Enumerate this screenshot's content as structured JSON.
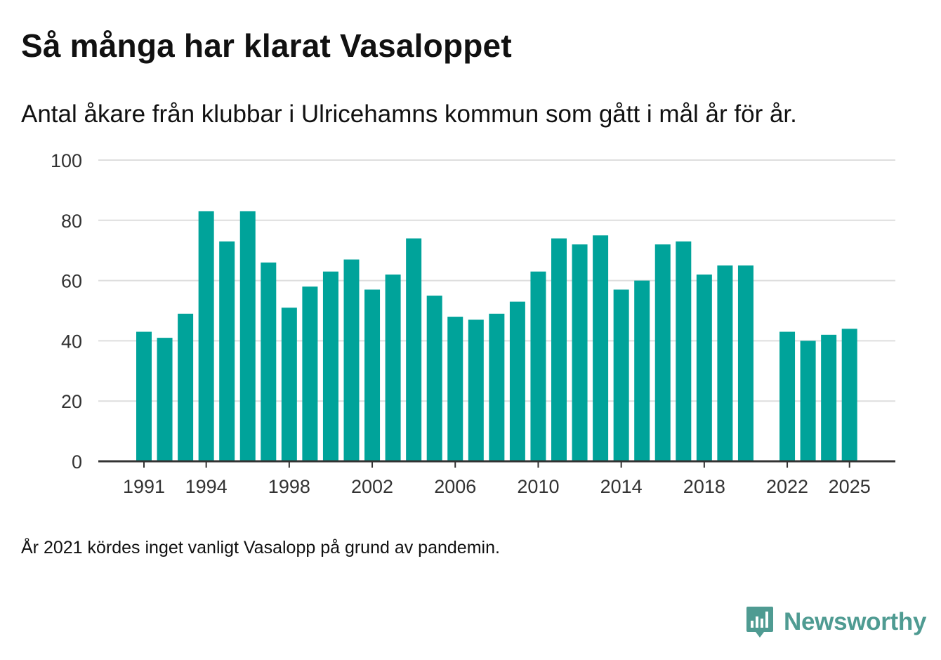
{
  "header": {
    "title": "Så många har klarat Vasaloppet",
    "subtitle": "Antal åkare från klubbar i Ulricehamns kommun som gått i mål år för år."
  },
  "footer": {
    "note": "År 2021 kördes inget vanligt Vasalopp på grund av pandemin.",
    "brand": "Newsworthy"
  },
  "colors": {
    "bar": "#00a39a",
    "grid": "#dedede",
    "axis": "#333333",
    "brand": "#4f9b92"
  },
  "chart_data": {
    "type": "bar",
    "title": "Så många har klarat Vasaloppet",
    "subtitle": "Antal åkare från klubbar i Ulricehamns kommun som gått i mål år för år.",
    "xlabel": "",
    "ylabel": "",
    "ylim": [
      0,
      100
    ],
    "yticks": [
      0,
      20,
      40,
      60,
      80,
      100
    ],
    "xticks": [
      1991,
      1994,
      1998,
      2002,
      2006,
      2010,
      2014,
      2018,
      2022,
      2025
    ],
    "grid": true,
    "categories": [
      1991,
      1992,
      1993,
      1994,
      1995,
      1996,
      1997,
      1998,
      1999,
      2000,
      2001,
      2002,
      2003,
      2004,
      2005,
      2006,
      2007,
      2008,
      2009,
      2010,
      2011,
      2012,
      2013,
      2014,
      2015,
      2016,
      2017,
      2018,
      2019,
      2020,
      2021,
      2022,
      2023,
      2024,
      2025
    ],
    "values": [
      43,
      41,
      49,
      83,
      73,
      83,
      66,
      51,
      58,
      63,
      67,
      57,
      62,
      74,
      55,
      48,
      47,
      49,
      53,
      63,
      74,
      72,
      75,
      57,
      60,
      72,
      73,
      62,
      65,
      65,
      null,
      43,
      40,
      42,
      44
    ]
  }
}
